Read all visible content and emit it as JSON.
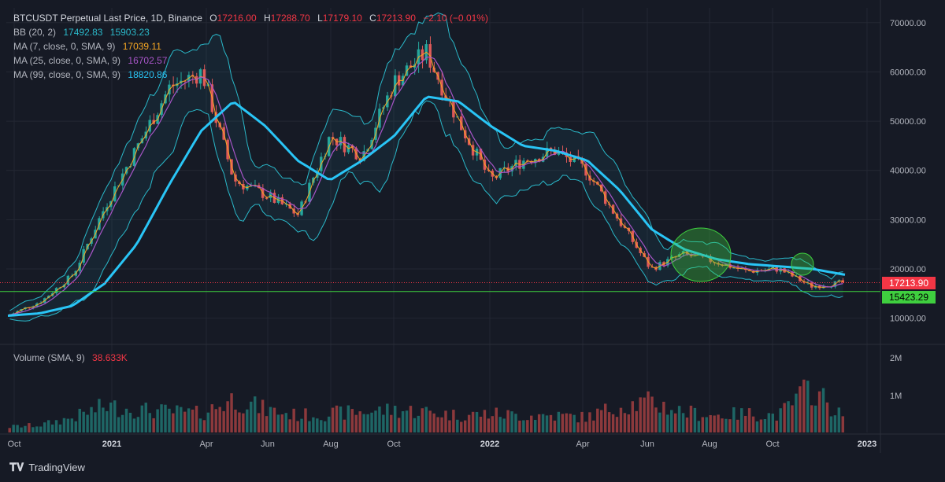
{
  "header": {
    "symbol": "BTCUSDT Perpetual Last Price, 1D, Binance",
    "open_label": "O",
    "open": "17216.00",
    "high_label": "H",
    "high": "17288.70",
    "low_label": "L",
    "low": "17179.10",
    "close_label": "C",
    "close": "17213.90",
    "change": "−2.10 (−0.01%)"
  },
  "indicators": [
    {
      "label": "BB (20, 2)",
      "v1": "17492.83",
      "v2": "15903.23",
      "color": "#2ab8c9"
    },
    {
      "label": "MA (7, close, 0, SMA, 9)",
      "v1": "17039.11",
      "color": "#f5a623"
    },
    {
      "label": "MA (25, close, 0, SMA, 9)",
      "v1": "16702.57",
      "color": "#a855c8"
    },
    {
      "label": "MA (99, close, 0, SMA, 9)",
      "v1": "18820.86",
      "color": "#29c5f6"
    }
  ],
  "volume_legend": {
    "label": "Volume (SMA, 9)",
    "value": "38.633K"
  },
  "price_badge": {
    "value": "17213.90",
    "color": "#f23645"
  },
  "support_badge": {
    "value": "15423.29",
    "color": "#2ecc40"
  },
  "footer": {
    "brand": "TradingView",
    "logo": "tradingview-logo"
  },
  "colors": {
    "background": "#161a25",
    "up": "#26a69a",
    "down": "#ef5350",
    "grid": "#232733",
    "support": "#3fcf3f"
  },
  "chart_data": {
    "type": "candlestick",
    "title": "BTCUSDT Perpetual Last Price, 1D, Binance",
    "x_ticks": [
      "Oct",
      "2021",
      "Apr",
      "Jun",
      "Aug",
      "Oct",
      "2022",
      "Apr",
      "Jun",
      "Aug",
      "Oct",
      "2023"
    ],
    "y_ticks": [
      "70000.00",
      "60000.00",
      "50000.00",
      "40000.00",
      "30000.00",
      "20000.00",
      "10000.00"
    ],
    "y_range": [
      5000,
      73000
    ],
    "volume_ticks": [
      "2M",
      "1M"
    ],
    "support_level": 15423.29,
    "last_price": 17213.9,
    "x": [
      "2020-10",
      "2020-11",
      "2020-12",
      "2021-01",
      "2021-02",
      "2021-03",
      "2021-04",
      "2021-05",
      "2021-06",
      "2021-07",
      "2021-08",
      "2021-09",
      "2021-10",
      "2021-11",
      "2021-12",
      "2022-01",
      "2022-02",
      "2022-03",
      "2022-04",
      "2022-05",
      "2022-06",
      "2022-07",
      "2022-08",
      "2022-09",
      "2022-10",
      "2022-11",
      "2022-12"
    ],
    "price": [
      10700,
      13500,
      19000,
      33000,
      45000,
      57000,
      60000,
      38000,
      35000,
      31000,
      47000,
      43000,
      58000,
      64000,
      50000,
      38000,
      42000,
      44000,
      40000,
      30000,
      20000,
      23000,
      21500,
      19500,
      20000,
      16500,
      17213.9
    ],
    "ma99": [
      10500,
      11000,
      12500,
      17000,
      25000,
      37000,
      48000,
      54000,
      49000,
      42000,
      38000,
      42000,
      47000,
      55000,
      54000,
      49000,
      45000,
      44000,
      42000,
      36000,
      28000,
      24000,
      22000,
      21000,
      20500,
      20000,
      18820.86
    ],
    "volume": [
      0.15,
      0.2,
      0.4,
      0.7,
      0.6,
      0.55,
      0.5,
      0.9,
      0.6,
      0.45,
      0.5,
      0.55,
      0.6,
      0.55,
      0.45,
      0.5,
      0.45,
      0.45,
      0.4,
      0.7,
      0.8,
      0.55,
      0.45,
      0.5,
      0.45,
      1.2,
      0.4
    ],
    "annotations": [
      "green circle around Jul 2022 consolidation",
      "green circle around Nov 2022 breakdown"
    ]
  }
}
